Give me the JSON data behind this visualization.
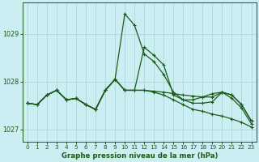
{
  "title": "Graphe pression niveau de la mer (hPa)",
  "background_color": "#cceef2",
  "grid_color": "#aad8dc",
  "line_color": "#1a5c1a",
  "xlim": [
    -0.5,
    23.5
  ],
  "ylim": [
    1026.75,
    1029.65
  ],
  "yticks": [
    1027,
    1028,
    1029
  ],
  "xticks": [
    0,
    1,
    2,
    3,
    4,
    5,
    6,
    7,
    8,
    9,
    10,
    11,
    12,
    13,
    14,
    15,
    16,
    17,
    18,
    19,
    20,
    21,
    22,
    23
  ],
  "line_spike": [
    1027.55,
    1027.52,
    1027.72,
    1027.82,
    1027.62,
    1027.65,
    1027.52,
    1027.42,
    1027.82,
    1028.05,
    1029.42,
    1029.18,
    1028.58,
    1028.42,
    1028.15,
    1027.78,
    1027.62,
    1027.62,
    1027.68,
    1027.75,
    1027.78,
    1027.65,
    1027.45,
    1027.12
  ],
  "line_flat": [
    1027.55,
    1027.52,
    1027.72,
    1027.82,
    1027.62,
    1027.65,
    1027.52,
    1027.42,
    1027.82,
    1028.05,
    1027.82,
    1027.82,
    1027.82,
    1027.8,
    1027.78,
    1027.75,
    1027.72,
    1027.7,
    1027.68,
    1027.68,
    1027.78,
    1027.72,
    1027.52,
    1027.18
  ],
  "line_mid": [
    1027.55,
    1027.52,
    1027.72,
    1027.82,
    1027.62,
    1027.65,
    1027.52,
    1027.42,
    1027.82,
    1028.05,
    1027.82,
    1027.82,
    1028.72,
    1028.55,
    1028.35,
    1027.72,
    1027.62,
    1027.55,
    1027.55,
    1027.58,
    1027.78,
    1027.72,
    1027.52,
    1027.18
  ],
  "line_diag": [
    1027.55,
    1027.52,
    1027.72,
    1027.82,
    1027.62,
    1027.65,
    1027.52,
    1027.42,
    1027.82,
    1028.05,
    1027.82,
    1027.82,
    1027.82,
    1027.78,
    1027.72,
    1027.62,
    1027.52,
    1027.42,
    1027.38,
    1027.32,
    1027.28,
    1027.22,
    1027.15,
    1027.05
  ]
}
